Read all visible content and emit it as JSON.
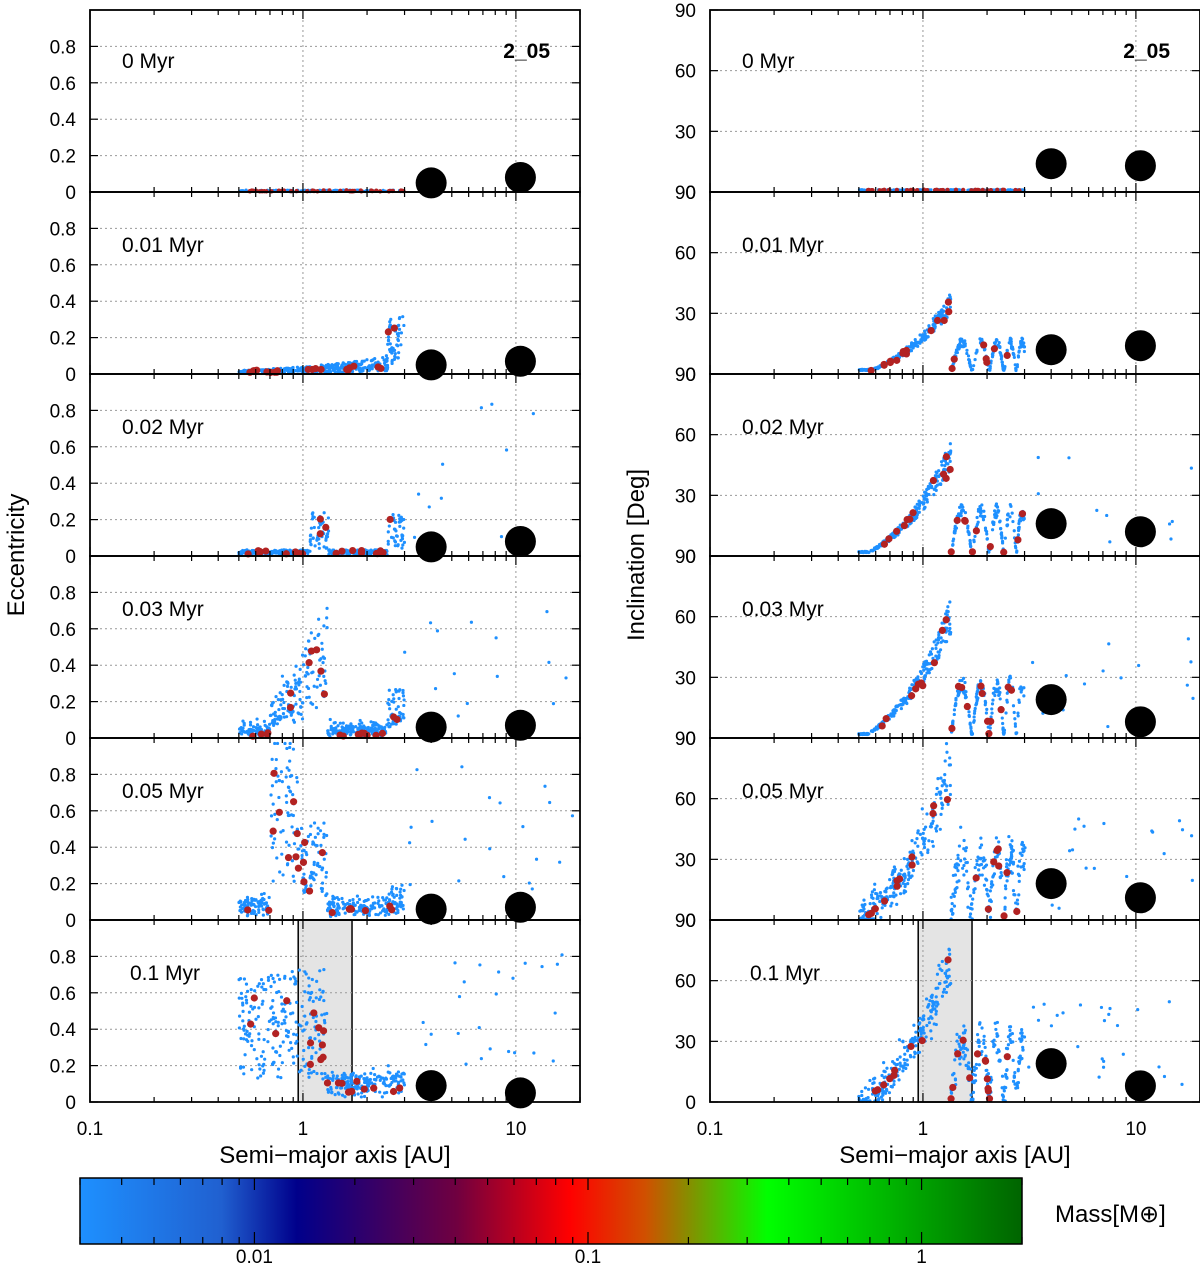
{
  "chart_data": {
    "type": "scatter",
    "run_id": "2_05",
    "snapshots": [
      "0 Myr",
      "0.01 Myr",
      "0.02 Myr",
      "0.03 Myr",
      "0.05 Myr",
      "0.1 Myr"
    ],
    "x_axis": {
      "label": "Semi−major axis [AU]",
      "scale": "log",
      "range": [
        0.1,
        20
      ],
      "tick_labels": [
        "0.1",
        "1",
        "10"
      ]
    },
    "left_panel": {
      "ylabel": "Eccentricity",
      "ylim": [
        0,
        1
      ],
      "yticks": [
        "0",
        "0.2",
        "0.4",
        "0.6",
        "0.8"
      ]
    },
    "right_panel": {
      "ylabel": "Inclination [Deg]",
      "ylim": [
        0,
        90
      ],
      "yticks": [
        "0",
        "30",
        "60",
        "90"
      ]
    },
    "grid": true,
    "giant_planets": [
      {
        "a": 4.0,
        "e_by_snapshot": [
          0.05,
          0.05,
          0.05,
          0.06,
          0.06,
          0.09
        ],
        "i_by_snapshot": [
          14,
          12,
          16,
          19,
          18,
          19
        ]
      },
      {
        "a": 10.5,
        "e_by_snapshot": [
          0.08,
          0.07,
          0.08,
          0.07,
          0.07,
          0.05
        ],
        "i_by_snapshot": [
          13,
          14,
          12,
          8,
          11,
          8
        ]
      }
    ],
    "highlight_band": {
      "snapshot": "0.1 Myr",
      "a_range": [
        0.95,
        1.7
      ]
    },
    "colorbar": {
      "label": "Mass[M⊕]",
      "scale": "log",
      "range": [
        0.003,
        2
      ],
      "tick_labels": [
        "0.01",
        "0.1",
        "1"
      ],
      "colors": [
        "#1e90ff",
        "#00008b",
        "#ff0000",
        "#00ff00",
        "#006400"
      ]
    },
    "series": [
      {
        "particles": "planetesimals",
        "color": "#1e90ff"
      },
      {
        "particles": "embryos",
        "color": "#b22222"
      }
    ]
  }
}
